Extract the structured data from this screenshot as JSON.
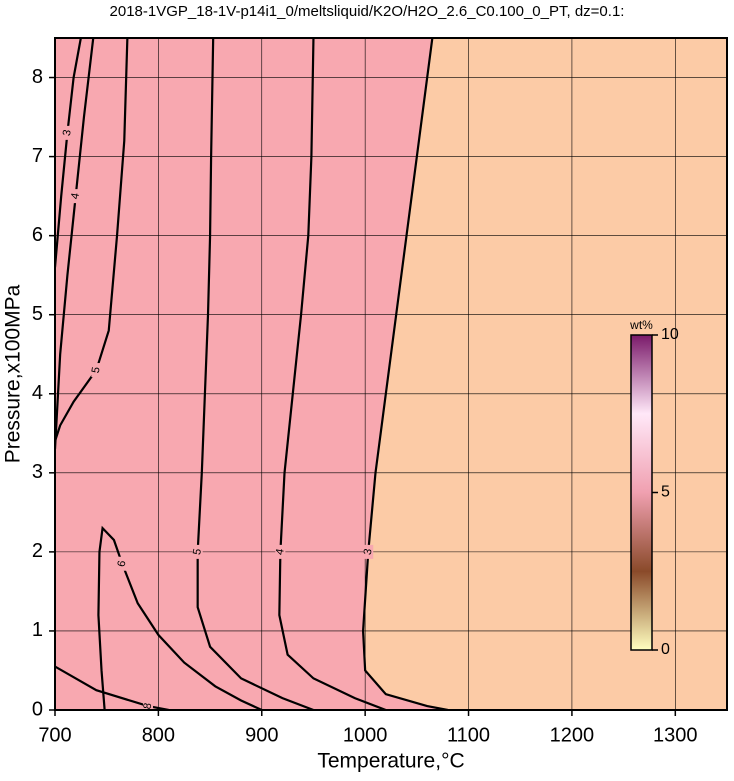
{
  "chart_data": {
    "type": "contour",
    "title": "2018-1VGP_18-1V-p14i1_0/meltsliquid/K2O/H2O_2.6_C0.100_0_PT, dz=0.1:",
    "x_label": "Temperature,°C",
    "y_label": "Pressure,x100MPa",
    "xlim": [
      700,
      1350
    ],
    "ylim": [
      0,
      8.5
    ],
    "xticks": [
      700,
      800,
      900,
      1000,
      1100,
      1200,
      1300
    ],
    "yticks": [
      0,
      1,
      2,
      3,
      4,
      5,
      6,
      7,
      8
    ],
    "grid": true,
    "high_color": "#f8a8b0",
    "low_color": "#fccba6",
    "line_color": "#000000",
    "contours": [
      {
        "level": 3,
        "x": [
          1065,
          1050,
          1040,
          1030,
          1020,
          1010,
          1003,
          998,
          1000,
          1020,
          1060,
          1080
        ],
        "y": [
          8.5,
          7,
          6,
          5,
          4,
          3,
          2,
          1,
          0.5,
          0.2,
          0.05,
          0
        ]
      },
      {
        "level": 4,
        "x": [
          950,
          948,
          945,
          938,
          930,
          922,
          918,
          917,
          925,
          950,
          990,
          1020
        ],
        "y": [
          8.5,
          7,
          6,
          5,
          4,
          3,
          2,
          1.2,
          0.7,
          0.4,
          0.15,
          0
        ]
      },
      {
        "level": 5,
        "x": [
          853,
          851,
          850,
          848,
          845,
          842,
          838,
          838,
          850,
          880,
          920,
          950
        ],
        "y": [
          8.5,
          7,
          6,
          5,
          4,
          3,
          2,
          1.3,
          0.8,
          0.4,
          0.15,
          0
        ]
      },
      {
        "level": 5,
        "x": [
          770,
          767,
          760,
          752,
          740,
          718,
          705,
          700
        ],
        "y": [
          8.5,
          7.2,
          6,
          4.8,
          4.3,
          3.9,
          3.6,
          3.4
        ]
      },
      {
        "level": 6,
        "x": [
          748,
          745,
          742,
          743,
          746,
          757,
          765,
          780,
          800,
          825,
          855,
          880,
          900
        ],
        "y": [
          0,
          0.5,
          1.2,
          2.0,
          2.3,
          2.15,
          1.85,
          1.35,
          0.95,
          0.6,
          0.3,
          0.12,
          0
        ]
      },
      {
        "level": 4,
        "x": [
          700,
          705,
          712,
          720,
          728,
          737
        ],
        "y": [
          3.3,
          4.5,
          5.5,
          6.5,
          7.5,
          8.5
        ]
      },
      {
        "level": 3,
        "x": [
          700,
          706,
          712,
          718,
          725
        ],
        "y": [
          5.6,
          6.5,
          7.3,
          8.0,
          8.5
        ]
      },
      {
        "level": 8,
        "x": [
          700,
          740,
          790,
          810
        ],
        "y": [
          0.55,
          0.25,
          0.05,
          0
        ]
      }
    ],
    "colorbar": {
      "label": "wt%",
      "lim": [
        0,
        10
      ],
      "ticks": [
        0,
        5,
        10
      ],
      "colors": [
        "#ffffc0",
        "#8a4a2a",
        "#f0a0b0",
        "#ffe8f8",
        "#7a1a6a"
      ]
    }
  }
}
